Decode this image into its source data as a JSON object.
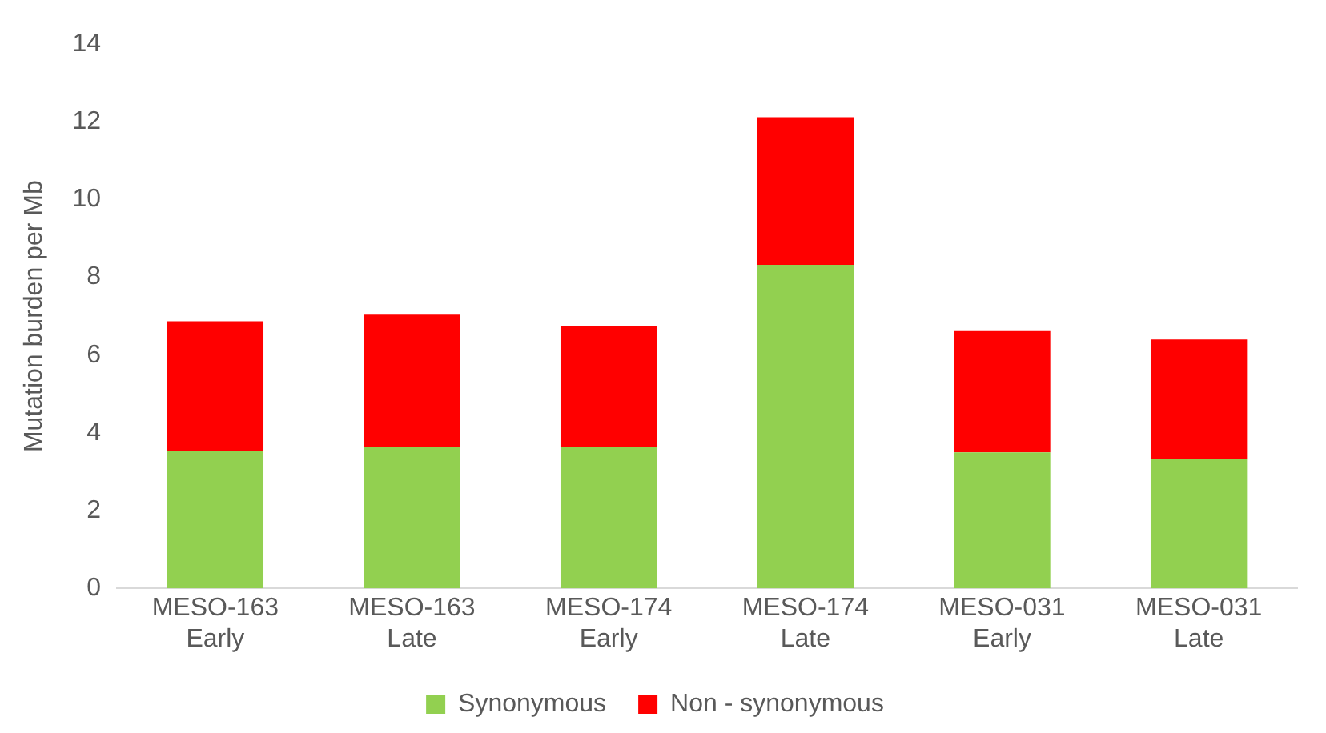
{
  "chart_data": {
    "type": "bar",
    "stacked": true,
    "ylabel": "Mutation burden per Mb",
    "categories": [
      "MESO-163\nEarly",
      "MESO-163\nLate",
      "MESO-174\nEarly",
      "MESO-174\nLate",
      "MESO-031\nEarly",
      "MESO-031\nLate"
    ],
    "series": [
      {
        "name": "Synonymous",
        "color": "#92d050",
        "values": [
          3.54,
          3.63,
          3.63,
          8.32,
          3.5,
          3.33
        ]
      },
      {
        "name": "Non - synonymous",
        "color": "#ff0000",
        "values": [
          3.33,
          3.41,
          3.11,
          3.8,
          3.12,
          3.07
        ]
      }
    ],
    "ylim": [
      0,
      14
    ],
    "yticks": [
      0,
      2,
      4,
      6,
      8,
      10,
      12,
      14
    ],
    "grid": false,
    "legend": "bottom"
  }
}
